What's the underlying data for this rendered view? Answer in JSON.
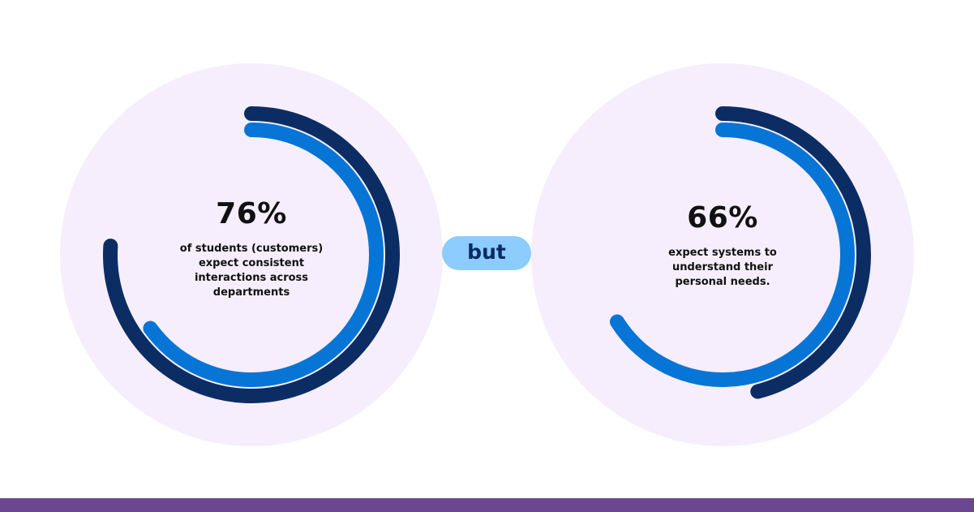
{
  "colors": {
    "background": "#ffffff",
    "circle_fill": "#f6eefc",
    "outer_ring": "#0b2d63",
    "inner_ring": "#0675d5",
    "connector_bg": "#8cccff",
    "connector_text": "#0a2a66",
    "footer_bar": "#6b4791"
  },
  "connector": {
    "label": "but"
  },
  "chart_data": [
    {
      "type": "radial-bar",
      "value_label": "76%",
      "value": 76,
      "caption": "of students (customers) expect consistent interactions across departments",
      "rings": [
        {
          "role": "outer",
          "fraction": 0.76
        },
        {
          "role": "inner",
          "fraction": 0.65
        }
      ]
    },
    {
      "type": "radial-bar",
      "value_label": "66%",
      "value": 66,
      "caption": "expect systems to understand their personal needs.",
      "rings": [
        {
          "role": "outer",
          "fraction": 0.46
        },
        {
          "role": "inner",
          "fraction": 0.66
        }
      ]
    }
  ]
}
